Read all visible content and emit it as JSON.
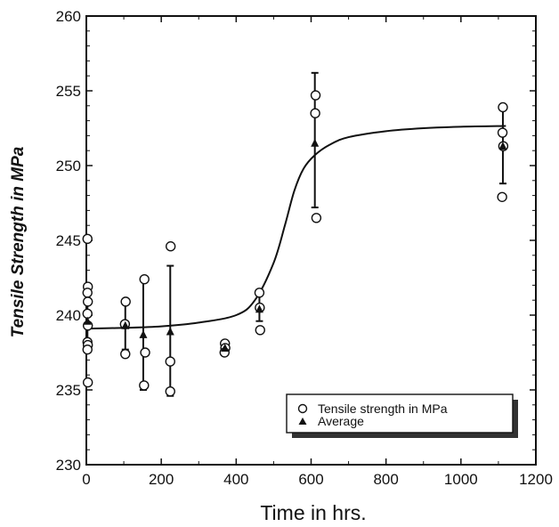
{
  "chart_data": {
    "type": "scatter",
    "title": "",
    "xlabel": "Time in hrs.",
    "ylabel": "Tensile Strength in MPa",
    "xlim": [
      0,
      1200
    ],
    "ylim": [
      230,
      260
    ],
    "xticks": [
      0,
      200,
      400,
      600,
      800,
      1000,
      1200
    ],
    "yticks": [
      230,
      235,
      240,
      245,
      250,
      255,
      260
    ],
    "grid": false,
    "legend_position": "bottom-right",
    "series": [
      {
        "name": "Tensile strength in MPa",
        "marker": "open-circle",
        "points": [
          [
            3,
            245.1
          ],
          [
            4,
            241.9
          ],
          [
            3,
            241.5
          ],
          [
            4,
            240.9
          ],
          [
            3,
            240.1
          ],
          [
            4,
            239.3
          ],
          [
            3,
            238.2
          ],
          [
            4,
            238.0
          ],
          [
            3,
            237.7
          ],
          [
            4,
            235.5
          ],
          [
            105,
            240.9
          ],
          [
            103,
            239.4
          ],
          [
            104,
            237.4
          ],
          [
            155,
            242.4
          ],
          [
            157,
            237.5
          ],
          [
            154,
            235.3
          ],
          [
            225,
            244.6
          ],
          [
            224,
            236.9
          ],
          [
            224,
            234.9
          ],
          [
            370,
            238.1
          ],
          [
            371,
            237.8
          ],
          [
            369,
            237.5
          ],
          [
            462,
            241.5
          ],
          [
            463,
            240.5
          ],
          [
            464,
            239.0
          ],
          [
            612,
            254.7
          ],
          [
            611,
            253.5
          ],
          [
            614,
            246.5
          ],
          [
            1112,
            253.9
          ],
          [
            1111,
            252.2
          ],
          [
            1113,
            251.3
          ],
          [
            1110,
            247.9
          ]
        ]
      },
      {
        "name": "Average",
        "marker": "filled-triangle",
        "points": [
          [
            3,
            239.6
          ],
          [
            104,
            239.3
          ],
          [
            152,
            238.7
          ],
          [
            224,
            238.9
          ],
          [
            370,
            237.8
          ],
          [
            462,
            240.4
          ],
          [
            610,
            251.5
          ],
          [
            1112,
            251.3
          ]
        ],
        "error_bars": [
          [
            237.5,
            241.8
          ],
          [
            237.7,
            240.9
          ],
          [
            235.0,
            242.4
          ],
          [
            234.6,
            243.3
          ],
          [
            237.4,
            238.2
          ],
          [
            239.6,
            241.7
          ],
          [
            247.2,
            256.2
          ],
          [
            248.8,
            254.0
          ]
        ]
      },
      {
        "name": "",
        "type": "line",
        "smooth": true,
        "points": [
          [
            0,
            239.1
          ],
          [
            100,
            239.15
          ],
          [
            200,
            239.25
          ],
          [
            300,
            239.5
          ],
          [
            400,
            240.0
          ],
          [
            450,
            241.0
          ],
          [
            500,
            243.5
          ],
          [
            530,
            246.0
          ],
          [
            555,
            248.3
          ],
          [
            580,
            249.8
          ],
          [
            610,
            250.7
          ],
          [
            650,
            251.4
          ],
          [
            700,
            251.9
          ],
          [
            800,
            252.3
          ],
          [
            900,
            252.5
          ],
          [
            1000,
            252.6
          ],
          [
            1120,
            252.65
          ]
        ]
      }
    ]
  }
}
